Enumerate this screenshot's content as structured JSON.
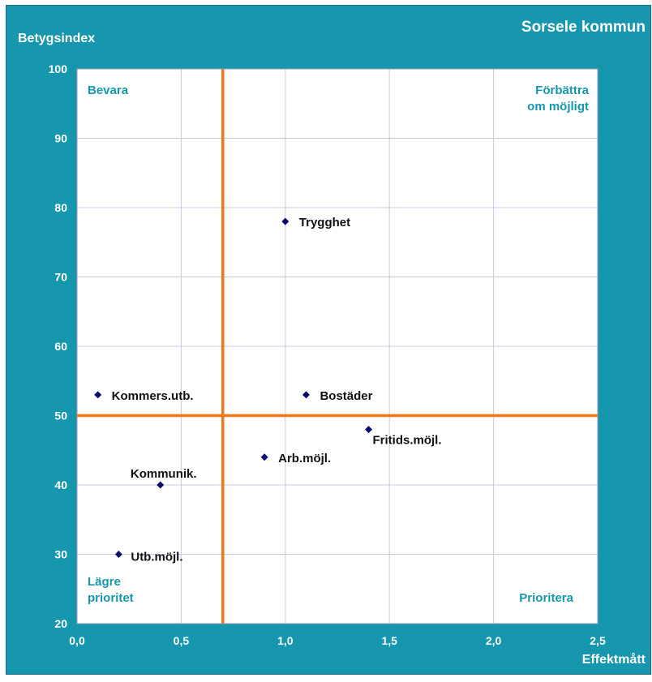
{
  "chart_data": {
    "type": "scatter",
    "title": "Sorsele kommun",
    "xlabel": "Effektmått",
    "ylabel": "Betygsindex",
    "xlim": [
      0,
      2.5
    ],
    "ylim": [
      20,
      100
    ],
    "xticks": [
      "0,0",
      "0,5",
      "1,0",
      "1,5",
      "2,0",
      "2,5"
    ],
    "yticks": [
      "20",
      "30",
      "40",
      "50",
      "60",
      "70",
      "80",
      "90",
      "100"
    ],
    "grid": true,
    "threshold_lines": {
      "x": 0.7,
      "y": 50,
      "color": "#f07818"
    },
    "quadrant_labels": {
      "top_left": [
        "Bevara"
      ],
      "top_right": [
        "Förbättra",
        "om möjligt"
      ],
      "bottom_left": [
        "Lägre",
        "prioritet"
      ],
      "bottom_right": [
        "Prioritera"
      ]
    },
    "points": [
      {
        "label": "Trygghet",
        "x": 1.0,
        "y": 78
      },
      {
        "label": "Kommers.utb.",
        "x": 0.1,
        "y": 53
      },
      {
        "label": "Bostäder",
        "x": 1.1,
        "y": 53
      },
      {
        "label": "Fritids.möjl.",
        "x": 1.4,
        "y": 48
      },
      {
        "label": "Arb.möjl.",
        "x": 0.9,
        "y": 44
      },
      {
        "label": "Kommunik.",
        "x": 0.4,
        "y": 40
      },
      {
        "label": "Utb.möjl.",
        "x": 0.2,
        "y": 30
      }
    ],
    "colors": {
      "background": "#1697ad",
      "plot_area": "#ffffff",
      "marker": "#0a0a6e",
      "grid": "#c8c8e6"
    }
  }
}
